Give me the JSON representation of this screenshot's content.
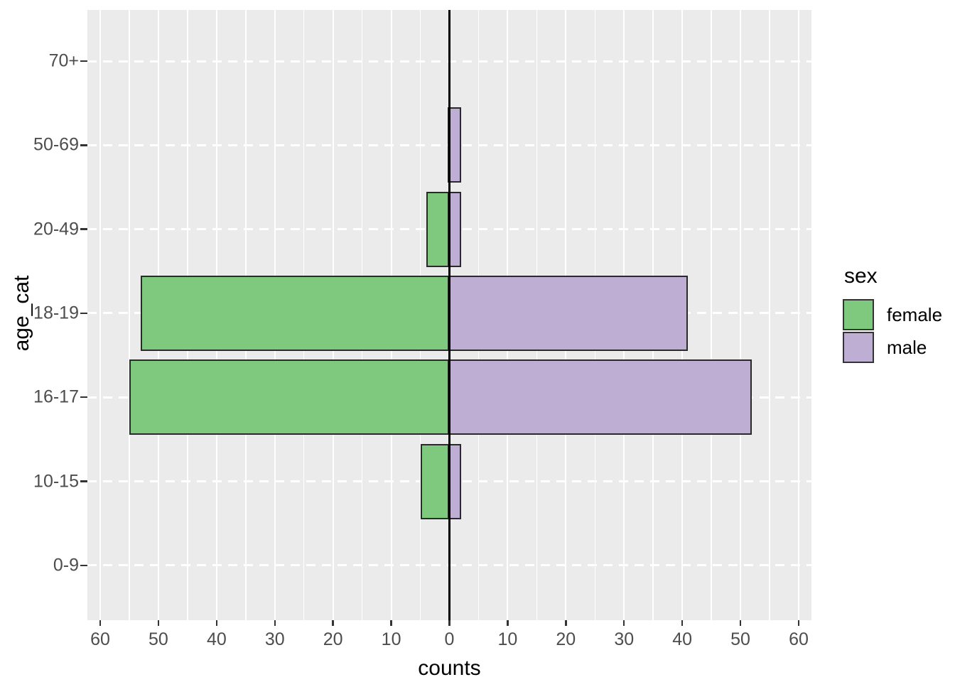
{
  "colors": {
    "background": "#FFFFFF",
    "panel_background": "#EBEBEB",
    "grid": "#FFFFFF",
    "axis_text": "#4D4D4D",
    "axis_title": "#000000",
    "bar_border": "#2A2A2A",
    "zero_line": "#000000",
    "female": "#7FC97F",
    "male": "#BEAED4"
  },
  "chart_data": {
    "type": "bar",
    "variant": "horizontal-diverging population pyramid",
    "title": "",
    "xlabel": "counts",
    "ylabel": "age_cat",
    "categories_top_to_bottom": [
      "70+",
      "50-69",
      "20-49",
      "18-19",
      "16-17",
      "10-15",
      "0-9"
    ],
    "series": [
      {
        "name": "female",
        "side": "left",
        "color": "#7FC97F",
        "values": [
          0,
          0,
          4,
          53,
          55,
          5,
          0
        ]
      },
      {
        "name": "male",
        "side": "right",
        "color": "#BEAED4",
        "values": [
          0,
          2,
          2,
          41,
          52,
          2,
          0
        ]
      }
    ],
    "x_axis": {
      "xlim": [
        -62.2,
        62.2
      ],
      "tick_values": [
        -60,
        -50,
        -40,
        -30,
        -20,
        -10,
        0,
        10,
        20,
        30,
        40,
        50,
        60
      ],
      "tick_labels": [
        "60",
        "50",
        "40",
        "30",
        "20",
        "10",
        "0",
        "10",
        "20",
        "30",
        "40",
        "50",
        "60"
      ],
      "minor_tick_values": [
        -55,
        -45,
        -35,
        -25,
        -15,
        -5,
        5,
        15,
        25,
        35,
        45,
        55
      ],
      "zero_reference_line": true,
      "grid": "vertical solid white major/minor; horizontal dashed white at each category"
    },
    "legend": {
      "title": "sex",
      "position": "right",
      "entries": [
        {
          "label": "female",
          "color": "#7FC97F"
        },
        {
          "label": "male",
          "color": "#BEAED4"
        }
      ]
    }
  }
}
